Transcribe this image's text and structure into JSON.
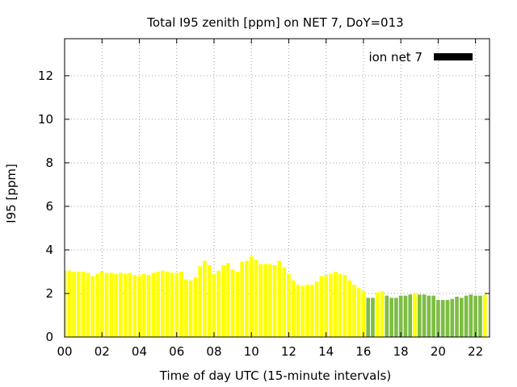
{
  "chart_data": {
    "type": "bar",
    "title": "Total I95 zenith [ppm] on NET 7, DoY=013",
    "xlabel": "Time of day UTC (15-minute intervals)",
    "ylabel": "I95 [ppm]",
    "xlim": [
      0,
      22.75
    ],
    "ylim": [
      0,
      13.7
    ],
    "x_ticks": [
      "00",
      "02",
      "04",
      "06",
      "08",
      "10",
      "12",
      "14",
      "16",
      "18",
      "20",
      "22"
    ],
    "x_tick_values": [
      0,
      2,
      4,
      6,
      8,
      10,
      12,
      14,
      16,
      18,
      20,
      22
    ],
    "y_ticks": [
      "0",
      "2",
      "4",
      "6",
      "8",
      "10",
      "12"
    ],
    "y_tick_values": [
      0,
      2,
      4,
      6,
      8,
      10,
      12
    ],
    "grid": true,
    "legend": {
      "label": "ion net 7",
      "position": "top-right",
      "color": "#000000"
    },
    "colors": {
      "yellow": "#ffff00",
      "green": "#7dbd44",
      "legend": "#000000"
    },
    "bar_interval_hours": 0.25,
    "series": [
      {
        "values": [
          3.05,
          3.05,
          3.0,
          3.0,
          3.0,
          2.95,
          2.8,
          2.9,
          3.0,
          2.95,
          2.95,
          2.9,
          2.95,
          2.9,
          2.95,
          2.85,
          2.8,
          2.9,
          2.85,
          2.95,
          3.0,
          3.05,
          3.0,
          2.95,
          2.95,
          3.0,
          2.65,
          2.6,
          2.75,
          3.25,
          3.5,
          3.3,
          2.9,
          3.05,
          3.3,
          3.4,
          3.1,
          3.0,
          3.45,
          3.5,
          3.7,
          3.55,
          3.35,
          3.35,
          3.35,
          3.3,
          3.5,
          3.2,
          2.9,
          2.6,
          2.4,
          2.35,
          2.4,
          2.4,
          2.55,
          2.8,
          2.85,
          2.9,
          3.0,
          2.9,
          2.85,
          2.6,
          2.4,
          2.25,
          2.1,
          1.8,
          1.8,
          2.05,
          2.1,
          1.9,
          1.8,
          1.8,
          1.9,
          1.9,
          1.95,
          2.0,
          1.95,
          1.95,
          1.9,
          1.9,
          1.7,
          1.7,
          1.7,
          1.75,
          1.85,
          1.8,
          1.9,
          1.95,
          1.9,
          1.9,
          1.95
        ],
        "colors": [
          "yellow",
          "yellow",
          "yellow",
          "yellow",
          "yellow",
          "yellow",
          "yellow",
          "yellow",
          "yellow",
          "yellow",
          "yellow",
          "yellow",
          "yellow",
          "yellow",
          "yellow",
          "yellow",
          "yellow",
          "yellow",
          "yellow",
          "yellow",
          "yellow",
          "yellow",
          "yellow",
          "yellow",
          "yellow",
          "yellow",
          "yellow",
          "yellow",
          "yellow",
          "yellow",
          "yellow",
          "yellow",
          "yellow",
          "yellow",
          "yellow",
          "yellow",
          "yellow",
          "yellow",
          "yellow",
          "yellow",
          "yellow",
          "yellow",
          "yellow",
          "yellow",
          "yellow",
          "yellow",
          "yellow",
          "yellow",
          "yellow",
          "yellow",
          "yellow",
          "yellow",
          "yellow",
          "yellow",
          "yellow",
          "yellow",
          "yellow",
          "yellow",
          "yellow",
          "yellow",
          "yellow",
          "yellow",
          "yellow",
          "yellow",
          "yellow",
          "green",
          "green",
          "yellow",
          "yellow",
          "green",
          "green",
          "green",
          "green",
          "green",
          "green",
          "yellow",
          "green",
          "green",
          "green",
          "green",
          "green",
          "green",
          "green",
          "green",
          "green",
          "green",
          "green",
          "green",
          "green",
          "green",
          "yellow"
        ]
      }
    ]
  }
}
